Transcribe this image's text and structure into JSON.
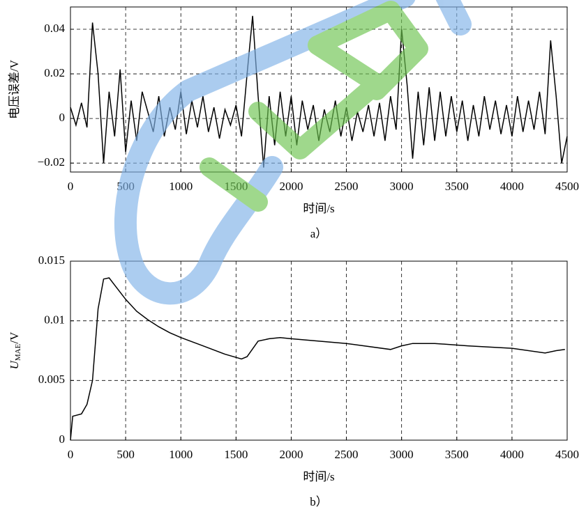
{
  "chart_data": [
    {
      "type": "line",
      "xlabel": "时间/s",
      "ylabel": "电压误差/V",
      "caption": "a）",
      "color": "#000000",
      "grid": true,
      "xlim": [
        0,
        4500
      ],
      "ylim": [
        -0.024,
        0.05
      ],
      "xticks": [
        0,
        500,
        1000,
        1500,
        2000,
        2500,
        3000,
        3500,
        4000,
        4500
      ],
      "yticks": [
        {
          "value": -0.02,
          "label": "−0.02"
        },
        0,
        0.02,
        0.04
      ],
      "x": [
        0,
        50,
        100,
        150,
        200,
        250,
        300,
        350,
        400,
        450,
        500,
        550,
        600,
        650,
        700,
        750,
        800,
        850,
        900,
        950,
        1000,
        1050,
        1100,
        1150,
        1200,
        1250,
        1300,
        1350,
        1400,
        1450,
        1500,
        1550,
        1600,
        1650,
        1700,
        1750,
        1800,
        1850,
        1900,
        1950,
        2000,
        2050,
        2100,
        2150,
        2200,
        2250,
        2300,
        2350,
        2400,
        2450,
        2500,
        2550,
        2600,
        2650,
        2700,
        2750,
        2800,
        2850,
        2900,
        2950,
        3000,
        3050,
        3100,
        3150,
        3200,
        3250,
        3300,
        3350,
        3400,
        3450,
        3500,
        3550,
        3600,
        3650,
        3700,
        3750,
        3800,
        3850,
        3900,
        3950,
        4000,
        4050,
        4100,
        4150,
        4200,
        4250,
        4300,
        4350,
        4400,
        4450,
        4500
      ],
      "values": [
        0.005,
        -0.003,
        0.007,
        -0.004,
        0.043,
        0.02,
        -0.02,
        0.012,
        -0.008,
        0.022,
        -0.015,
        0.008,
        -0.01,
        0.012,
        0.003,
        -0.006,
        0.01,
        -0.008,
        0.005,
        -0.005,
        0.012,
        -0.007,
        0.008,
        -0.004,
        0.01,
        -0.006,
        0.005,
        -0.009,
        0.004,
        -0.003,
        0.006,
        -0.008,
        0.02,
        0.046,
        0.01,
        -0.022,
        0.01,
        -0.012,
        0.012,
        -0.008,
        0.01,
        -0.012,
        0.008,
        -0.005,
        0.006,
        -0.01,
        0.004,
        -0.006,
        0.008,
        -0.008,
        0.005,
        -0.01,
        0.003,
        -0.006,
        0.006,
        -0.008,
        0.007,
        -0.01,
        0.01,
        -0.005,
        0.04,
        0.015,
        -0.018,
        0.012,
        -0.012,
        0.014,
        -0.01,
        0.012,
        -0.008,
        0.01,
        -0.006,
        0.008,
        -0.01,
        0.006,
        -0.008,
        0.01,
        -0.005,
        0.008,
        -0.007,
        0.006,
        -0.008,
        0.01,
        -0.006,
        0.008,
        -0.005,
        0.012,
        -0.007,
        0.035,
        0.01,
        -0.02,
        -0.008
      ]
    },
    {
      "type": "line",
      "xlabel": "时间/s",
      "ylabel": {
        "main": "U",
        "sub": "MAE",
        "unit": "/V"
      },
      "caption": "b）",
      "color": "#000000",
      "grid": true,
      "xlim": [
        0,
        4500
      ],
      "ylim": [
        0,
        0.015
      ],
      "xticks": [
        0,
        500,
        1000,
        1500,
        2000,
        2500,
        3000,
        3500,
        4000,
        4500
      ],
      "yticks": [
        0,
        0.005,
        0.01,
        0.015
      ],
      "x": [
        0,
        20,
        100,
        150,
        200,
        250,
        300,
        350,
        400,
        500,
        600,
        700,
        800,
        900,
        1000,
        1200,
        1400,
        1550,
        1600,
        1700,
        1800,
        1900,
        2000,
        2500,
        2900,
        3000,
        3100,
        3300,
        3600,
        4000,
        4300,
        4400,
        4480
      ],
      "values": [
        0,
        0.002,
        0.0022,
        0.003,
        0.005,
        0.011,
        0.0135,
        0.0136,
        0.013,
        0.0118,
        0.0108,
        0.0101,
        0.0095,
        0.009,
        0.0086,
        0.0079,
        0.0072,
        0.0068,
        0.007,
        0.0083,
        0.0085,
        0.0086,
        0.0085,
        0.0081,
        0.0076,
        0.0079,
        0.0081,
        0.0081,
        0.0079,
        0.0077,
        0.0073,
        0.0075,
        0.0076
      ]
    }
  ]
}
